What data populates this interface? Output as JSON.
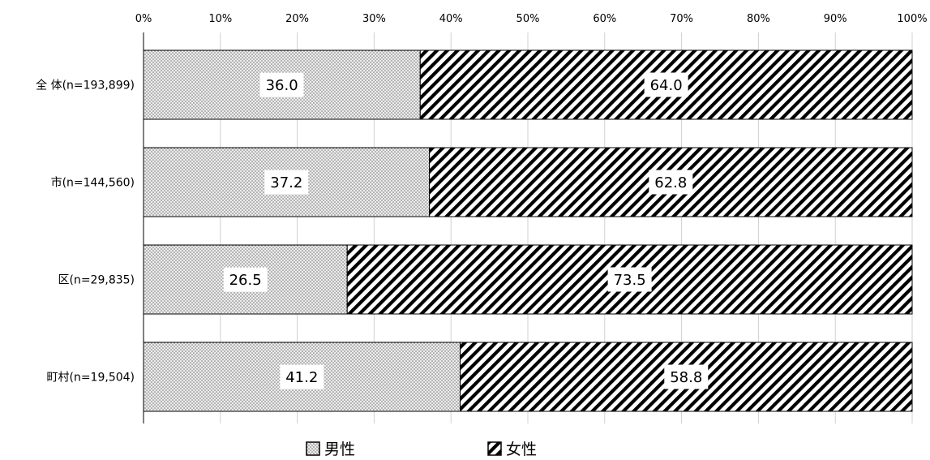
{
  "chart_data": {
    "type": "bar",
    "orientation": "horizontal",
    "stacked": "percent",
    "categories": [
      "全 体(n=193,899)",
      "市(n=144,560)",
      "区(n=29,835)",
      "町村(n=19,504)"
    ],
    "series": [
      {
        "name": "男性",
        "values": [
          36.0,
          37.2,
          26.5,
          41.2
        ],
        "pattern": "dots",
        "color": "#808080"
      },
      {
        "name": "女性",
        "values": [
          64.0,
          62.8,
          73.5,
          58.8
        ],
        "pattern": "diagonal-stripes",
        "color": "#000000"
      }
    ],
    "data_labels": [
      [
        "36.0",
        "37.2",
        "26.5",
        "41.2"
      ],
      [
        "64.0",
        "62.8",
        "73.5",
        "58.8"
      ]
    ],
    "xlim": [
      0,
      100
    ],
    "xticks": [
      "0%",
      "10%",
      "20%",
      "30%",
      "40%",
      "50%",
      "60%",
      "70%",
      "80%",
      "90%",
      "100%"
    ],
    "grid": true,
    "legend_position": "bottom",
    "title": "",
    "xlabel": "",
    "ylabel": ""
  }
}
